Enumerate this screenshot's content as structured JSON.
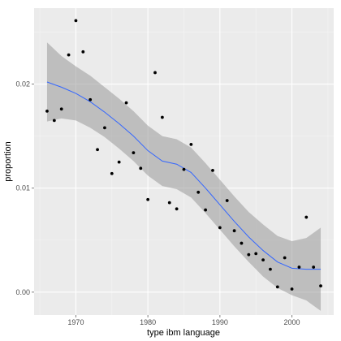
{
  "chart_data": {
    "type": "scatter",
    "title": "",
    "xlabel": "type ibm language",
    "ylabel": "proportion",
    "xlim": [
      1964.2,
      2005.8
    ],
    "ylim": [
      -0.0022,
      0.0273
    ],
    "x_ticks": [
      1970,
      1980,
      1990,
      2000
    ],
    "y_ticks": [
      0.0,
      0.01,
      0.02
    ],
    "y_tick_labels": [
      "0.00",
      "0.01",
      "0.02"
    ],
    "grid": true,
    "points": [
      {
        "x": 1966,
        "y": 0.0174
      },
      {
        "x": 1967,
        "y": 0.0165
      },
      {
        "x": 1968,
        "y": 0.0176
      },
      {
        "x": 1969,
        "y": 0.0228
      },
      {
        "x": 1970,
        "y": 0.0261
      },
      {
        "x": 1971,
        "y": 0.0231
      },
      {
        "x": 1972,
        "y": 0.0185
      },
      {
        "x": 1973,
        "y": 0.0137
      },
      {
        "x": 1974,
        "y": 0.0158
      },
      {
        "x": 1975,
        "y": 0.0114
      },
      {
        "x": 1976,
        "y": 0.0125
      },
      {
        "x": 1977,
        "y": 0.0182
      },
      {
        "x": 1978,
        "y": 0.0134
      },
      {
        "x": 1979,
        "y": 0.0119
      },
      {
        "x": 1980,
        "y": 0.0089
      },
      {
        "x": 1981,
        "y": 0.0211
      },
      {
        "x": 1982,
        "y": 0.0168
      },
      {
        "x": 1983,
        "y": 0.0086
      },
      {
        "x": 1984,
        "y": 0.008
      },
      {
        "x": 1985,
        "y": 0.0118
      },
      {
        "x": 1986,
        "y": 0.0142
      },
      {
        "x": 1987,
        "y": 0.0096
      },
      {
        "x": 1988,
        "y": 0.0079
      },
      {
        "x": 1989,
        "y": 0.0117
      },
      {
        "x": 1990,
        "y": 0.0062
      },
      {
        "x": 1991,
        "y": 0.0088
      },
      {
        "x": 1992,
        "y": 0.0059
      },
      {
        "x": 1993,
        "y": 0.0047
      },
      {
        "x": 1994,
        "y": 0.0036
      },
      {
        "x": 1995,
        "y": 0.0037
      },
      {
        "x": 1996,
        "y": 0.0031
      },
      {
        "x": 1997,
        "y": 0.0022
      },
      {
        "x": 1998,
        "y": 0.0005
      },
      {
        "x": 1999,
        "y": 0.0033
      },
      {
        "x": 2000,
        "y": 0.0003
      },
      {
        "x": 2001,
        "y": 0.0024
      },
      {
        "x": 2002,
        "y": 0.0072
      },
      {
        "x": 2003,
        "y": 0.0024
      },
      {
        "x": 2004,
        "y": 0.0006
      }
    ],
    "smooth": {
      "method": "loess",
      "x": [
        1966,
        1968,
        1970,
        1972,
        1974,
        1976,
        1978,
        1980,
        1982,
        1984,
        1986,
        1988,
        1990,
        1992,
        1994,
        1996,
        1998,
        2000,
        2002,
        2004
      ],
      "y": [
        0.0202,
        0.0197,
        0.0191,
        0.0183,
        0.0173,
        0.0162,
        0.015,
        0.0136,
        0.0126,
        0.0123,
        0.0115,
        0.01,
        0.0084,
        0.0068,
        0.0053,
        0.004,
        0.0029,
        0.0023,
        0.0022,
        0.0022
      ],
      "ymin": [
        0.0164,
        0.0167,
        0.0165,
        0.0158,
        0.0149,
        0.0138,
        0.0126,
        0.0112,
        0.0102,
        0.0099,
        0.0091,
        0.0076,
        0.006,
        0.0044,
        0.0029,
        0.0015,
        0.0004,
        -0.0003,
        -0.0008,
        -0.0018
      ],
      "ymax": [
        0.024,
        0.0227,
        0.0217,
        0.0208,
        0.0197,
        0.0186,
        0.0174,
        0.016,
        0.015,
        0.0147,
        0.0139,
        0.0124,
        0.0108,
        0.0092,
        0.0077,
        0.0065,
        0.0054,
        0.0049,
        0.0052,
        0.0062
      ]
    },
    "colors": {
      "panel": "#ebebeb",
      "grid_major": "#ffffff",
      "grid_minor": "#f5f5f5",
      "points": "#000000",
      "line": "#3366ff",
      "ribbon": "#999999"
    }
  }
}
